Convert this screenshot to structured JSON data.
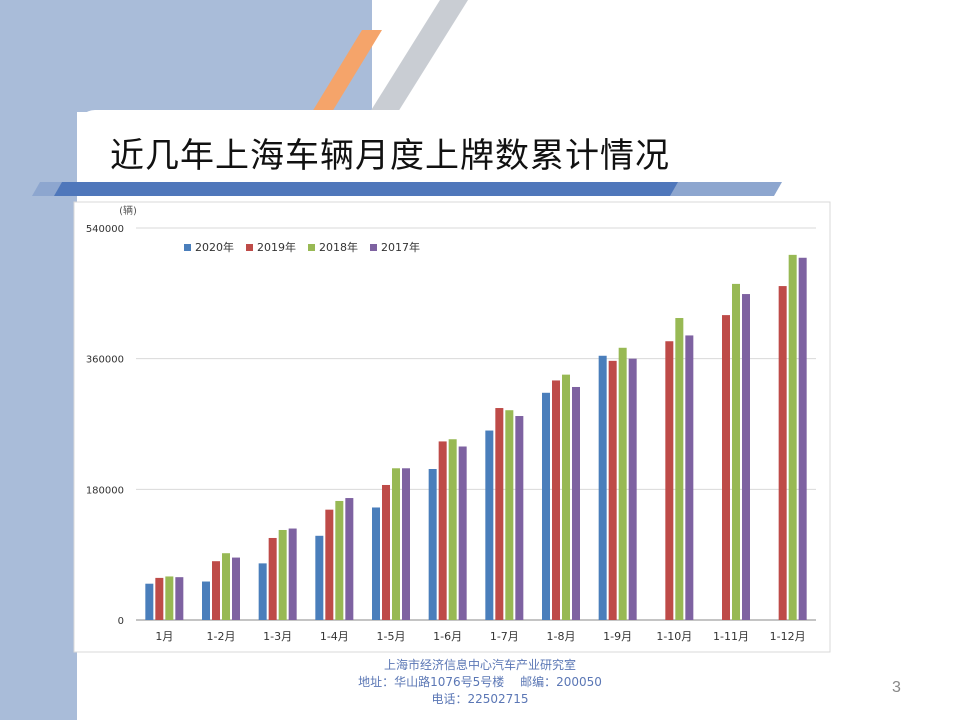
{
  "slide": {
    "title": "近几年上海车辆月度上牌数累计情况",
    "page_number": "3",
    "footer": {
      "line1": "上海市经济信息中心汽车产业研究室",
      "line2": "地址：华山路1076号5号楼　 邮编：200050",
      "line3": "电话：22502715"
    }
  },
  "chart_data": {
    "type": "bar",
    "unit_label": "(辆)",
    "categories": [
      "1月",
      "1-2月",
      "1-3月",
      "1-4月",
      "1-5月",
      "1-6月",
      "1-7月",
      "1-8月",
      "1-9月",
      "1-10月",
      "1-11月",
      "1-12月"
    ],
    "ylim": [
      0,
      540000
    ],
    "yticks": [
      0,
      180000,
      360000,
      540000
    ],
    "ytick_labels": [
      "0",
      "180000",
      "360000",
      "540000"
    ],
    "grid": true,
    "legend_position": "top-left",
    "series": [
      {
        "name": "2020年",
        "color": "#4a7ebb",
        "values": [
          50000,
          53000,
          78000,
          116000,
          155000,
          208000,
          261000,
          313000,
          364000,
          null,
          null,
          null
        ]
      },
      {
        "name": "2019年",
        "color": "#be4b48",
        "values": [
          58000,
          81000,
          113000,
          152000,
          186000,
          246000,
          292000,
          330000,
          357000,
          384000,
          420000,
          460000
        ]
      },
      {
        "name": "2018年",
        "color": "#98b954",
        "values": [
          60000,
          92000,
          124000,
          164000,
          209000,
          249000,
          289000,
          338000,
          375000,
          416000,
          463000,
          503000
        ]
      },
      {
        "name": "2017年",
        "color": "#7e62a1",
        "values": [
          59000,
          86000,
          126000,
          168000,
          209000,
          239000,
          281000,
          321000,
          360000,
          392000,
          449000,
          499000
        ]
      }
    ]
  }
}
